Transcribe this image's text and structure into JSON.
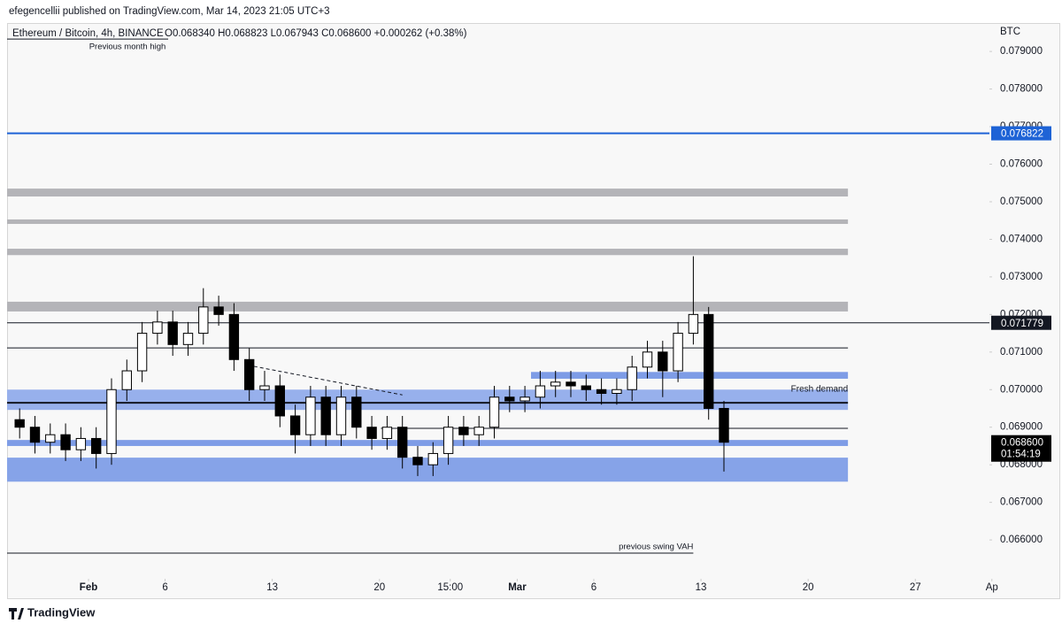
{
  "header": {
    "publisher": "efegencellii published on TradingView.com, Mar 14, 2023 21:05 UTC+3"
  },
  "chart_data": {
    "type": "candlestick",
    "title": "Ethereum / Bitcoin, 4h, BINANCE",
    "legend_ohlc": "O0.068340  H0.068823  L0.067943  C0.068600  +0.000262 (+0.38%)",
    "y_axis_unit": "BTC",
    "x": [
      -4.5,
      -3.5,
      -2.5,
      -1.5,
      -0.5,
      0.5,
      1.5,
      2.5,
      3.5,
      4.5,
      5.5,
      6.5,
      7.5,
      8.5,
      9.5,
      10.5,
      11.5,
      12.5,
      13.5,
      14.5,
      15.5,
      16.5,
      17.5,
      18.5,
      19.5,
      20.5,
      21.5,
      22.5,
      23.5,
      24.5,
      25.5,
      26.5,
      27.5,
      28.5,
      29.5,
      30.5,
      31.5,
      32.5,
      33.5,
      34.5,
      35.5,
      36.5,
      37.5,
      38.5,
      39.5,
      40.5,
      41.5
    ],
    "open": [
      0.0692,
      0.069,
      0.0686,
      0.0688,
      0.0684,
      0.0687,
      0.0683,
      0.07,
      0.0705,
      0.0715,
      0.0718,
      0.0712,
      0.0715,
      0.0722,
      0.072,
      0.0708,
      0.07,
      0.0701,
      0.0693,
      0.0688,
      0.0698,
      0.0688,
      0.0698,
      0.069,
      0.0687,
      0.069,
      0.0682,
      0.068,
      0.0683,
      0.069,
      0.0688,
      0.069,
      0.0698,
      0.0697,
      0.0698,
      0.0701,
      0.0702,
      0.0701,
      0.07,
      0.0699,
      0.07,
      0.0706,
      0.071,
      0.0705,
      0.0715,
      0.072,
      0.0695
    ],
    "high": [
      0.0695,
      0.0693,
      0.0691,
      0.0691,
      0.069,
      0.069,
      0.0703,
      0.0708,
      0.0718,
      0.0721,
      0.0721,
      0.0718,
      0.0727,
      0.0725,
      0.0723,
      0.0711,
      0.0705,
      0.0704,
      0.0696,
      0.0701,
      0.0701,
      0.0701,
      0.0701,
      0.0693,
      0.0693,
      0.0693,
      0.0685,
      0.0686,
      0.0693,
      0.0693,
      0.0693,
      0.0701,
      0.0701,
      0.0701,
      0.0705,
      0.0705,
      0.0705,
      0.0704,
      0.0703,
      0.0703,
      0.0709,
      0.0713,
      0.0713,
      0.0718,
      0.07355,
      0.0722,
      0.0697
    ],
    "low": [
      0.0687,
      0.0683,
      0.0683,
      0.0681,
      0.0681,
      0.0679,
      0.068,
      0.0697,
      0.0702,
      0.0712,
      0.0709,
      0.0709,
      0.0712,
      0.0717,
      0.0705,
      0.0697,
      0.0697,
      0.069,
      0.0683,
      0.0685,
      0.0685,
      0.0685,
      0.0687,
      0.0684,
      0.0684,
      0.0679,
      0.0677,
      0.0677,
      0.068,
      0.0685,
      0.0685,
      0.0687,
      0.0694,
      0.0694,
      0.0695,
      0.0698,
      0.0698,
      0.0697,
      0.0696,
      0.0696,
      0.0697,
      0.0703,
      0.0698,
      0.0702,
      0.0712,
      0.0692,
      0.06782
    ],
    "close": [
      0.069,
      0.0686,
      0.0688,
      0.0684,
      0.0687,
      0.0683,
      0.07,
      0.0705,
      0.0715,
      0.0718,
      0.0712,
      0.0715,
      0.0722,
      0.072,
      0.0708,
      0.07,
      0.0701,
      0.0693,
      0.0688,
      0.0698,
      0.0688,
      0.0698,
      0.069,
      0.0687,
      0.069,
      0.0682,
      0.068,
      0.0683,
      0.069,
      0.0688,
      0.069,
      0.0698,
      0.0697,
      0.0698,
      0.0701,
      0.0702,
      0.0701,
      0.07,
      0.0699,
      0.07,
      0.0706,
      0.071,
      0.0705,
      0.0715,
      0.072,
      0.0695,
      0.0686
    ],
    "up_color": "#ffffff",
    "down_color": "#000000",
    "xlim": [
      -5.32,
      58.84
    ],
    "xticks": [
      {
        "value": 0,
        "label": "Feb"
      },
      {
        "value": 5,
        "label": "6"
      },
      {
        "value": 12,
        "label": "13"
      },
      {
        "value": 19,
        "label": "20"
      },
      {
        "value": 23.625,
        "label": "15:00"
      },
      {
        "value": 28,
        "label": "Mar"
      },
      {
        "value": 33,
        "label": "6"
      },
      {
        "value": 40,
        "label": "13"
      },
      {
        "value": 47,
        "label": "20"
      },
      {
        "value": 54,
        "label": "27"
      },
      {
        "value": 59,
        "label": "Ap"
      }
    ],
    "ylim": [
      0.06506,
      0.07971
    ],
    "yticks": [
      {
        "value": 0.066,
        "label": "0.066000"
      },
      {
        "value": 0.067,
        "label": "0.067000"
      },
      {
        "value": 0.068,
        "label": "0.068000"
      },
      {
        "value": 0.069,
        "label": "0.069000"
      },
      {
        "value": 0.07,
        "label": "0.070000"
      },
      {
        "value": 0.071,
        "label": "0.071000"
      },
      {
        "value": 0.072,
        "label": "0.072000"
      },
      {
        "value": 0.073,
        "label": "0.073000"
      },
      {
        "value": 0.074,
        "label": "0.074000"
      },
      {
        "value": 0.075,
        "label": "0.075000"
      },
      {
        "value": 0.076,
        "label": "0.076000"
      },
      {
        "value": 0.077,
        "label": "0.077000"
      },
      {
        "value": 0.078,
        "label": "0.078000"
      },
      {
        "value": 0.079,
        "label": "0.079000"
      }
    ],
    "zones": [
      {
        "y": [
          0.07514,
          0.07535
        ],
        "x": [
          -5.32,
          49.6
        ],
        "color": "#b4b4b8"
      },
      {
        "y": [
          0.07441,
          0.07453
        ],
        "x": [
          -5.32,
          49.6
        ],
        "color": "#b4b4b8"
      },
      {
        "y": [
          0.07358,
          0.07375
        ],
        "x": [
          -5.32,
          49.6
        ],
        "color": "#b4b4b8"
      },
      {
        "y": [
          0.07208,
          0.07234
        ],
        "x": [
          -5.32,
          49.6
        ],
        "color": "#b4b4b8"
      },
      {
        "y": [
          0.06946,
          0.07
        ],
        "x": [
          -5.32,
          49.6
        ],
        "color": "#97b0ec"
      },
      {
        "y": [
          0.07029,
          0.07047
        ],
        "x": [
          28.9,
          49.6
        ],
        "color": "#7e9ce6",
        "label": "Fresh demand"
      },
      {
        "y": [
          0.0685,
          0.06866
        ],
        "x": [
          -5.32,
          49.6
        ],
        "color": "#7e9ce6"
      },
      {
        "y": [
          0.06755,
          0.06819
        ],
        "x": [
          -5.32,
          49.6
        ],
        "color": "#86a3e8"
      }
    ],
    "lines": [
      {
        "y": 0.07933,
        "x": [
          -5.32,
          5.2
        ],
        "color": "#131722",
        "width": 1,
        "label": "Previous month high",
        "label_position": "below"
      },
      {
        "y": 0.076822,
        "x": [
          -5.32,
          58.84
        ],
        "color": "#1e63d6",
        "width": 2,
        "tag": true
      },
      {
        "y": 0.071779,
        "x": [
          -5.32,
          58.84
        ],
        "color": "#131722",
        "width": 1,
        "tag": true
      },
      {
        "y": 0.07111,
        "x": [
          -5.32,
          49.6
        ],
        "color": "#131722",
        "width": 1
      },
      {
        "y": 0.06965,
        "x": [
          -5.32,
          49.6
        ],
        "color": "#131722",
        "width": 2
      },
      {
        "y": 0.06897,
        "x": [
          19.1,
          49.6
        ],
        "color": "#131722",
        "width": 1
      },
      {
        "y": 0.06565,
        "x": [
          -5.32,
          39.5
        ],
        "color": "#131722",
        "width": 1,
        "label": "previous swing VAH",
        "label_position": "above"
      }
    ],
    "trendline": {
      "x": [
        10.8,
        20.5
      ],
      "y": [
        0.07062,
        0.06986
      ],
      "dashed": true
    },
    "last_price": {
      "value": 0.0686,
      "label": "0.068600"
    },
    "countdown": "01:54:19"
  },
  "footer": {
    "brand": "TradingView"
  }
}
